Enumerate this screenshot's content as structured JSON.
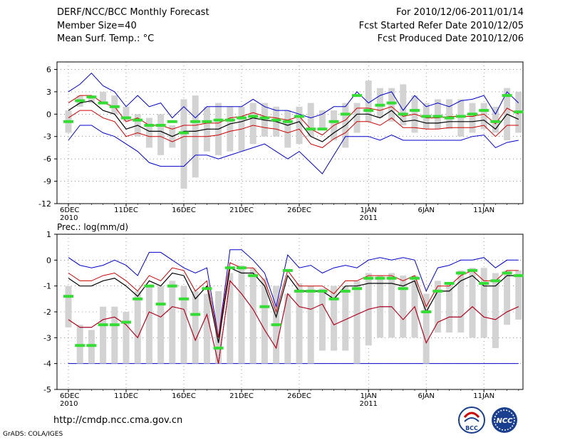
{
  "header": {
    "title": "DERF/NCC/BCC Monthly Forecast",
    "member_size": "Member Size=40",
    "variable": "Mean Surf. Temp.: °C",
    "forecast_range": "For 2010/12/06-2011/01/14",
    "start_date": "Fcst Started Refer Date 2010/12/05",
    "produced_date": "Fcst Produced Date 2010/12/06"
  },
  "footer": {
    "url": "http://cmdp.ncc.cma.gov.cn",
    "credit": "GrADS: COLA/IGES",
    "logo_bcc": "BCC",
    "logo_ncc": "NCC"
  },
  "colors": {
    "box": "#d3d3d3",
    "median": "#33dd33",
    "mean": "#000000",
    "inner": "#cc0000",
    "outer": "#0000cc",
    "grid": "#555555"
  },
  "chart_data": [
    {
      "type": "box-ensemble",
      "title": "Mean Surf. Temp.: °C",
      "ylim": [
        -12,
        7
      ],
      "yticks": [
        -12,
        -9,
        -6,
        -3,
        0,
        3,
        6
      ],
      "xticks": [
        {
          "day": 0,
          "label": "6DEC",
          "year": "2010"
        },
        {
          "day": 5,
          "label": "11DEC",
          "year": ""
        },
        {
          "day": 10,
          "label": "16DEC",
          "year": ""
        },
        {
          "day": 15,
          "label": "21DEC",
          "year": ""
        },
        {
          "day": 20,
          "label": "26DEC",
          "year": ""
        },
        {
          "day": 26,
          "label": "1JAN",
          "year": "2011"
        },
        {
          "day": 31,
          "label": "6JAN",
          "year": ""
        },
        {
          "day": 36,
          "label": "11JAN",
          "year": ""
        }
      ],
      "box_low": [
        -2.5,
        1.0,
        1.5,
        1.5,
        0.0,
        -1.0,
        -3.0,
        -4.5,
        -5.5,
        -4.5,
        -10.0,
        -8.5,
        -5.0,
        -5.5,
        -5.0,
        -5.0,
        -4.0,
        -3.0,
        -3.0,
        -4.5,
        -4.0,
        -3.0,
        -2.0,
        -3.5,
        -4.5,
        -2.5,
        -1.0,
        -0.5,
        -1.0,
        -1.5,
        -2.5,
        -2.0,
        -2.0,
        -2.0,
        -3.0,
        -2.5,
        -2.0,
        -2.5,
        -3.5,
        -2.5
      ],
      "box_high": [
        0.5,
        2.5,
        2.5,
        3.0,
        2.5,
        1.0,
        0.0,
        -0.5,
        0.0,
        -1.5,
        2.0,
        2.5,
        1.0,
        1.5,
        1.0,
        1.0,
        1.5,
        1.5,
        1.0,
        0.5,
        1.0,
        1.5,
        0.5,
        0.5,
        1.5,
        1.5,
        4.5,
        3.5,
        3.5,
        4.0,
        2.5,
        1.5,
        2.0,
        2.0,
        2.0,
        1.5,
        1.5,
        1.0,
        3.5,
        3.0
      ],
      "median": [
        -1.0,
        1.8,
        2.3,
        1.5,
        1.0,
        -0.5,
        -0.8,
        -1.5,
        -1.5,
        -1.0,
        -2.5,
        -1.0,
        -1.0,
        -0.8,
        -0.8,
        -0.5,
        -0.3,
        -0.5,
        -0.8,
        -1.0,
        -0.3,
        -2.0,
        -2.0,
        -1.0,
        0.0,
        2.5,
        0.5,
        1.2,
        1.5,
        0.0,
        0.5,
        -0.3,
        -0.3,
        -0.5,
        -0.3,
        0.0,
        0.5,
        -1.0,
        2.5,
        0.3
      ],
      "mean": [
        0.5,
        1.5,
        1.8,
        0.5,
        0.0,
        -2.0,
        -1.5,
        -2.3,
        -2.3,
        -3.0,
        -2.3,
        -2.3,
        -2.0,
        -2.0,
        -1.3,
        -1.0,
        -0.5,
        -0.8,
        -1.0,
        -1.5,
        -1.0,
        -3.0,
        -3.7,
        -2.5,
        -1.5,
        0.0,
        0.0,
        -0.5,
        0.5,
        -1.0,
        -0.8,
        -1.2,
        -1.2,
        -1.0,
        -1.0,
        -1.0,
        -0.8,
        -2.0,
        0.0,
        -0.7
      ],
      "inner_high": [
        1.5,
        2.5,
        2.5,
        1.5,
        1.0,
        -1.0,
        -0.5,
        -1.5,
        -1.5,
        -2.0,
        -1.5,
        -1.5,
        -1.2,
        -1.2,
        -0.5,
        -0.3,
        0.2,
        -0.3,
        -0.5,
        -0.8,
        -0.3,
        -2.0,
        -2.8,
        -1.5,
        -0.8,
        0.8,
        0.8,
        0.5,
        1.0,
        -0.3,
        0.0,
        -0.5,
        -0.5,
        -0.3,
        -0.3,
        -0.3,
        0.0,
        -1.3,
        0.8,
        0.0
      ],
      "inner_low": [
        -0.5,
        0.5,
        0.5,
        -0.5,
        -1.0,
        -3.0,
        -2.5,
        -3.0,
        -3.0,
        -3.7,
        -3.0,
        -3.0,
        -3.0,
        -2.8,
        -2.3,
        -2.0,
        -1.5,
        -1.8,
        -2.0,
        -2.5,
        -2.0,
        -4.0,
        -4.5,
        -3.3,
        -2.5,
        -1.0,
        -1.0,
        -1.5,
        -0.5,
        -1.8,
        -1.8,
        -2.0,
        -2.0,
        -1.8,
        -1.8,
        -1.8,
        -1.5,
        -3.0,
        -1.5,
        -1.5
      ],
      "outer_high": [
        3.0,
        4.0,
        5.5,
        3.8,
        3.0,
        1.0,
        2.5,
        1.0,
        1.5,
        -0.5,
        1.0,
        -0.5,
        1.0,
        1.0,
        1.0,
        1.0,
        2.0,
        1.0,
        0.5,
        0.5,
        0.0,
        -0.5,
        0.0,
        1.0,
        1.0,
        3.0,
        1.5,
        2.5,
        3.0,
        0.5,
        2.5,
        1.0,
        1.5,
        1.0,
        1.8,
        2.0,
        2.5,
        0.0,
        3.0,
        1.5
      ],
      "outer_low": [
        -3.5,
        -1.5,
        -1.5,
        -2.5,
        -3.0,
        -4.0,
        -5.0,
        -6.5,
        -7.0,
        -7.0,
        -7.0,
        -5.5,
        -5.5,
        -6.0,
        -5.5,
        -5.0,
        -4.5,
        -4.0,
        -5.0,
        -6.0,
        -5.0,
        -6.5,
        -8.0,
        -5.5,
        -3.0,
        -3.0,
        -3.0,
        -3.5,
        -2.8,
        -3.5,
        -3.5,
        -3.5,
        -3.5,
        -3.5,
        -3.5,
        -3.0,
        -2.8,
        -4.5,
        -3.8,
        -3.5
      ]
    },
    {
      "type": "box-ensemble",
      "title": "Prec.: log(mm/d)",
      "ylim": [
        -5,
        1
      ],
      "yticks": [
        -5,
        -4,
        -3,
        -2,
        -1,
        0,
        1
      ],
      "baseline": -4,
      "xticks": [
        {
          "day": 0,
          "label": "6DEC",
          "year": "2010"
        },
        {
          "day": 5,
          "label": "11DEC",
          "year": ""
        },
        {
          "day": 10,
          "label": "16DEC",
          "year": ""
        },
        {
          "day": 15,
          "label": "21DEC",
          "year": ""
        },
        {
          "day": 20,
          "label": "26DEC",
          "year": ""
        },
        {
          "day": 26,
          "label": "1JAN",
          "year": "2011"
        },
        {
          "day": 31,
          "label": "6JAN",
          "year": ""
        },
        {
          "day": 36,
          "label": "11JAN",
          "year": ""
        }
      ],
      "box_low": [
        -2.6,
        -4.0,
        -4.0,
        -4.0,
        -4.0,
        -4.0,
        -4.0,
        -4.0,
        -4.0,
        -4.0,
        -4.0,
        -4.0,
        -4.0,
        -4.0,
        -4.0,
        -4.0,
        -4.0,
        -4.0,
        -4.0,
        -4.0,
        -4.0,
        -4.0,
        -3.5,
        -3.5,
        -3.5,
        -4.0,
        -3.3,
        -3.0,
        -3.0,
        -3.0,
        -3.0,
        -4.0,
        -2.8,
        -2.8,
        -2.8,
        -3.0,
        -3.0,
        -3.4,
        -2.5,
        -2.3
      ],
      "box_high": [
        -1.0,
        -2.5,
        -2.7,
        -1.8,
        -1.8,
        -2.0,
        -1.2,
        -1.0,
        -1.0,
        -0.8,
        -1.0,
        -1.2,
        -1.3,
        -1.2,
        -0.5,
        -0.2,
        -0.3,
        -0.7,
        -1.0,
        -1.3,
        -0.9,
        -1.0,
        -1.1,
        -1.0,
        -1.0,
        -0.8,
        -0.5,
        -0.6,
        -0.5,
        -0.6,
        -0.6,
        -1.3,
        -0.8,
        -0.9,
        -0.4,
        -0.3,
        -0.3,
        -0.5,
        -0.4,
        -0.4
      ],
      "median": [
        -1.4,
        -3.3,
        -3.3,
        -2.5,
        -2.5,
        -2.4,
        -1.5,
        -1.0,
        -1.7,
        -1.0,
        -1.5,
        -2.1,
        -1.1,
        -3.4,
        -0.3,
        -0.3,
        -0.6,
        -1.8,
        -2.5,
        -0.4,
        -1.2,
        -1.2,
        -1.2,
        -1.5,
        -1.2,
        -1.1,
        -0.7,
        -0.7,
        -0.7,
        -1.1,
        -0.7,
        -2.0,
        -1.2,
        -0.9,
        -0.5,
        -0.4,
        -0.9,
        -0.8,
        -0.5,
        -0.6
      ],
      "mean": [
        -0.7,
        -1.0,
        -1.0,
        -0.8,
        -0.7,
        -1.0,
        -1.4,
        -0.8,
        -1.0,
        -0.5,
        -0.6,
        -1.5,
        -1.0,
        -3.2,
        -0.3,
        -0.5,
        -0.5,
        -1.0,
        -2.2,
        -0.6,
        -1.2,
        -1.2,
        -1.2,
        -1.5,
        -1.0,
        -1.0,
        -0.9,
        -0.9,
        -0.9,
        -1.0,
        -0.8,
        -2.0,
        -1.2,
        -1.2,
        -0.8,
        -0.6,
        -1.0,
        -1.0,
        -0.6,
        -0.6
      ],
      "inner_high": [
        -0.5,
        -0.8,
        -0.8,
        -0.6,
        -0.5,
        -0.8,
        -1.2,
        -0.6,
        -0.8,
        -0.3,
        -0.4,
        -1.2,
        -0.8,
        -3.0,
        -0.1,
        -0.3,
        -0.3,
        -0.8,
        -2.0,
        -0.4,
        -1.0,
        -1.0,
        -1.0,
        -1.3,
        -0.8,
        -0.8,
        -0.6,
        -0.6,
        -0.6,
        -0.8,
        -0.6,
        -1.8,
        -1.0,
        -1.0,
        -0.6,
        -0.4,
        -0.8,
        -0.8,
        -0.4,
        -0.4
      ],
      "inner_low": [
        -2.3,
        -2.6,
        -2.6,
        -2.3,
        -2.2,
        -2.5,
        -3.0,
        -2.0,
        -2.2,
        -1.8,
        -1.9,
        -3.1,
        -2.1,
        -4.0,
        -0.8,
        -1.3,
        -1.9,
        -2.7,
        -3.4,
        -1.3,
        -1.8,
        -1.9,
        -1.7,
        -2.5,
        -2.3,
        -2.1,
        -1.9,
        -1.8,
        -1.8,
        -2.3,
        -1.8,
        -3.2,
        -2.4,
        -2.2,
        -2.2,
        -1.8,
        -2.2,
        -2.3,
        -2.0,
        -1.8
      ],
      "outer_high": [
        0.1,
        -0.2,
        -0.3,
        -0.2,
        0.0,
        -0.2,
        -0.6,
        0.3,
        0.3,
        0.0,
        -0.3,
        -0.5,
        -0.3,
        -3.0,
        0.4,
        0.4,
        0.0,
        -0.5,
        -1.8,
        0.2,
        -0.3,
        -0.2,
        -0.5,
        -0.3,
        -0.2,
        -0.3,
        0.0,
        0.1,
        0.0,
        0.1,
        0.0,
        -1.2,
        -0.3,
        -0.2,
        0.0,
        0.0,
        0.1,
        -0.3,
        0.0,
        0.0
      ],
      "outer_low": [
        -2.3,
        -2.6,
        -2.6,
        -2.3,
        -2.2,
        -2.5,
        -3.0,
        -2.0,
        -2.2,
        -1.8,
        -1.9,
        -3.1,
        -2.1,
        -4.0,
        -0.8,
        -1.3,
        -1.9,
        -2.7,
        -3.4,
        -1.3,
        -1.8,
        -1.9,
        -1.7,
        -2.5,
        -2.3,
        -2.1,
        -1.9,
        -1.8,
        -1.8,
        -2.3,
        -1.8,
        -3.2,
        -2.4,
        -2.2,
        -2.2,
        -1.8,
        -2.2,
        -2.3,
        -2.0,
        -1.8
      ]
    }
  ]
}
